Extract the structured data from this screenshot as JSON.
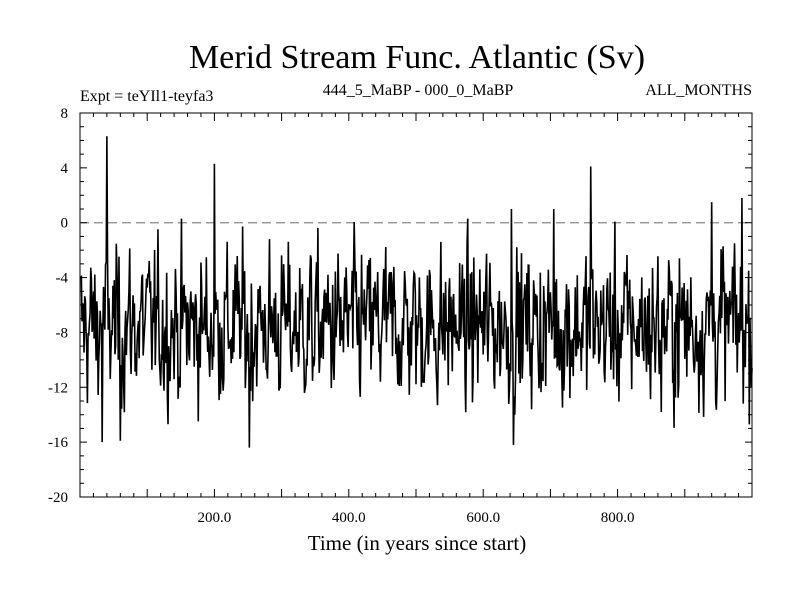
{
  "chart_data": {
    "type": "line",
    "title": "Merid Stream Func. Atlantic (Sv)",
    "subtitle_left": "Expt = teYIl1-teyfa3",
    "subtitle_center": "444_5_MaBP - 000_0_MaBP",
    "subtitle_right": "ALL_MONTHS",
    "xlabel": "Time (in years since start)",
    "ylabel": "",
    "xlim": [
      0,
      1000
    ],
    "ylim": [
      -20,
      8
    ],
    "x_ticks": [
      200,
      400,
      600,
      800
    ],
    "x_tick_labels": [
      "200.0",
      "400.0",
      "600.0",
      "800.0"
    ],
    "y_ticks": [
      8,
      4,
      0,
      -4,
      -8,
      -12,
      -16,
      -20
    ],
    "y_tick_labels": [
      "8",
      "4",
      "0",
      "-4",
      "-8",
      "-12",
      "-16",
      "-20"
    ],
    "reference_line": {
      "y": 0,
      "style": "dashed"
    },
    "series": [
      {
        "name": "Merid Stream Func. Atlantic",
        "x_start": 1,
        "x_step": 1,
        "n_points": 1000,
        "mean": -7.5,
        "std": 2.8,
        "values_approx_extremes": [
          {
            "x": 40,
            "y": 6.3
          },
          {
            "x": 33,
            "y": -16.0
          },
          {
            "x": 60,
            "y": -15.9
          },
          {
            "x": 200,
            "y": 4.3
          },
          {
            "x": 252,
            "y": -16.4
          },
          {
            "x": 645,
            "y": -16.2
          },
          {
            "x": 642,
            "y": 1.0
          },
          {
            "x": 760,
            "y": 4.1
          },
          {
            "x": 705,
            "y": 1.0
          },
          {
            "x": 865,
            "y": -13.8
          },
          {
            "x": 940,
            "y": 1.5
          },
          {
            "x": 985,
            "y": 1.8
          }
        ]
      }
    ]
  },
  "colors": {
    "line": "#000000",
    "reference": "#888888",
    "axis": "#000000",
    "background": "#ffffff"
  }
}
